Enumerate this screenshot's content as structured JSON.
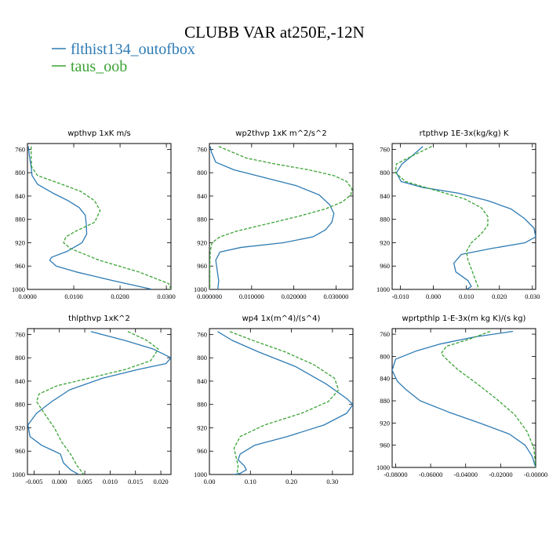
{
  "colors": {
    "series1": "#2e7bb4",
    "series2": "#3aa335"
  },
  "chart_data": {
    "title": "CLUBB VAR at250E,-12N",
    "legend": [
      {
        "label": "flthist134_outofbox",
        "color": "#2e7bb4",
        "style": "solid"
      },
      {
        "label": "taus_oob",
        "color": "#3aa335",
        "style": "dashed"
      }
    ],
    "panels": [
      {
        "type": "line",
        "title": "wpthvp  1xK m/s",
        "xlim": [
          0,
          0.031
        ],
        "ylim": [
          1000,
          750
        ],
        "xtick_values": [
          0,
          0.01,
          0.02,
          0.03
        ],
        "xtick_labels": [
          "0.0000",
          "0.0100",
          "0.0200",
          "0.0300"
        ],
        "ytick_values": [
          760,
          800,
          840,
          880,
          920,
          960,
          1000
        ],
        "ytick_labels": [
          "760",
          "800",
          "840",
          "880",
          "920",
          "960",
          "1000"
        ],
        "series": [
          {
            "name": "flthist134_outofbox",
            "x": [
              0.0002,
              0.0004,
              0.0008,
              0.001,
              0.0022,
              0.0055,
              0.0088,
              0.0112,
              0.0125,
              0.0127,
              0.0128,
              0.0118,
              0.0085,
              0.0052,
              0.0048,
              0.0062,
              0.0105,
              0.0185,
              0.027
            ],
            "y": [
              755,
              770,
              790,
              805,
              820,
              835,
              848,
              860,
              873,
              888,
              905,
              920,
              935,
              945,
              950,
              960,
              970,
              985,
              1000
            ]
          },
          {
            "name": "taus_oob",
            "x": [
              0.0008,
              0.0008,
              0.0009,
              0.0022,
              0.0068,
              0.0115,
              0.0145,
              0.0157,
              0.0145,
              0.0105,
              0.0083,
              0.0078,
              0.0093,
              0.0155,
              0.024,
              0.0305,
              0.031
            ],
            "y": [
              755,
              770,
              790,
              805,
              818,
              832,
              848,
              865,
              885,
              900,
              910,
              920,
              930,
              950,
              970,
              990,
              1000
            ]
          }
        ]
      },
      {
        "type": "line",
        "title": "wp2thvp  1xK m^2/s^2",
        "xlim": [
          0,
          0.034
        ],
        "ylim": [
          1000,
          750
        ],
        "xtick_values": [
          0,
          0.01,
          0.02,
          0.03
        ],
        "xtick_labels": [
          "0.000000",
          "0.010000",
          "0.020000",
          "0.030000"
        ],
        "ytick_values": [
          760,
          800,
          840,
          880,
          920,
          960,
          1000
        ],
        "ytick_labels": [
          "760",
          "800",
          "840",
          "880",
          "920",
          "960",
          "1000"
        ],
        "series": [
          {
            "name": "flthist134_outofbox",
            "x": [
              0.0002,
              0.0005,
              0.0015,
              0.0058,
              0.0128,
              0.0205,
              0.026,
              0.0285,
              0.0295,
              0.029,
              0.0275,
              0.0245,
              0.0175,
              0.0075,
              0.0025,
              0.0015,
              0.0018,
              0.0022,
              0.002
            ],
            "y": [
              755,
              765,
              782,
              795,
              808,
              822,
              838,
              855,
              870,
              885,
              898,
              910,
              920,
              928,
              936,
              950,
              965,
              985,
              1000
            ]
          },
          {
            "name": "taus_oob",
            "x": [
              0.0022,
              0.0045,
              0.0088,
              0.0155,
              0.0235,
              0.0295,
              0.0325,
              0.0338,
              0.0335,
              0.0315,
              0.0275,
              0.021,
              0.0135,
              0.0065,
              0.0025,
              0.0006,
              0.0002,
              0.0001,
              0.0001
            ],
            "y": [
              755,
              762,
              775,
              785,
              795,
              805,
              815,
              828,
              838,
              850,
              862,
              875,
              888,
              900,
              910,
              920,
              935,
              960,
              1000
            ]
          }
        ]
      },
      {
        "type": "line",
        "title": "rtpthvp  1E-3x(kg/kg) K",
        "xlim": [
          -0.0125,
          0.031
        ],
        "ylim": [
          1000,
          750
        ],
        "xtick_values": [
          -0.01,
          0,
          0.01,
          0.02,
          0.03
        ],
        "xtick_labels": [
          "-0.010",
          "0.000",
          "0.010",
          "0.020",
          "0.030"
        ],
        "ytick_values": [
          760,
          800,
          840,
          880,
          920,
          960,
          1000
        ],
        "ytick_labels": [
          "760",
          "800",
          "840",
          "880",
          "920",
          "960",
          "1000"
        ],
        "series": [
          {
            "name": "flthist134_outofbox",
            "x": [
              -0.0032,
              -0.0062,
              -0.0095,
              -0.0112,
              -0.0098,
              -0.0035,
              0.0075,
              0.0165,
              0.0235,
              0.0275,
              0.0305,
              0.031,
              0.0278,
              0.0175,
              0.0085,
              0.0062,
              0.0068,
              0.0105,
              0.0115,
              0.01
            ],
            "y": [
              755,
              770,
              785,
              800,
              815,
              825,
              835,
              848,
              862,
              878,
              895,
              910,
              920,
              930,
              940,
              955,
              970,
              985,
              995,
              1000
            ]
          },
          {
            "name": "taus_oob",
            "x": [
              -0.0005,
              -0.006,
              -0.0112,
              -0.0115,
              -0.0085,
              0.0005,
              0.0095,
              0.0145,
              0.0165,
              0.0165,
              0.0145,
              0.0115,
              0.01,
              0.0105,
              0.0115,
              0.0125,
              0.0135,
              0.0138
            ],
            "y": [
              755,
              770,
              785,
              800,
              815,
              830,
              845,
              860,
              875,
              890,
              905,
              920,
              935,
              950,
              965,
              980,
              995,
              1000
            ]
          }
        ]
      },
      {
        "type": "line",
        "title": "thlpthvp  1xK^2",
        "xlim": [
          -0.0063,
          0.022
        ],
        "ylim": [
          1000,
          750
        ],
        "xtick_values": [
          -0.005,
          0,
          0.005,
          0.01,
          0.015,
          0.02
        ],
        "xtick_labels": [
          "-0.005",
          "0.000",
          "0.005",
          "0.010",
          "0.015",
          "0.020"
        ],
        "ytick_values": [
          760,
          800,
          840,
          880,
          920,
          960,
          1000
        ],
        "ytick_labels": [
          "760",
          "800",
          "840",
          "880",
          "920",
          "960",
          "1000"
        ],
        "series": [
          {
            "name": "flthist134_outofbox",
            "x": [
              0.0062,
              0.0128,
              0.0185,
              0.022,
              0.021,
              0.0155,
              0.0085,
              0.002,
              -0.0015,
              -0.0045,
              -0.0062,
              -0.0058,
              -0.0035,
              -0.0015,
              0.0002,
              0.0008,
              0.0022,
              0.0038
            ],
            "y": [
              755,
              770,
              785,
              800,
              810,
              820,
              835,
              855,
              875,
              895,
              915,
              935,
              950,
              958,
              965,
              980,
              992,
              1000
            ]
          },
          {
            "name": "taus_oob",
            "x": [
              0.0135,
              0.0172,
              0.0195,
              0.018,
              0.013,
              0.0058,
              -0.0005,
              -0.004,
              -0.0045,
              -0.003,
              -0.001,
              0.0005,
              0.0022,
              0.0035,
              0.0048
            ],
            "y": [
              755,
              770,
              785,
              805,
              820,
              835,
              848,
              862,
              875,
              895,
              920,
              945,
              965,
              985,
              1000
            ]
          }
        ]
      },
      {
        "type": "line",
        "title": "wp4  1x(m^4)/(s^4)",
        "xlim": [
          0,
          0.35
        ],
        "ylim": [
          1000,
          750
        ],
        "xtick_values": [
          0,
          0.1,
          0.2,
          0.3
        ],
        "xtick_labels": [
          "0.00",
          "0.10",
          "0.20",
          "0.30"
        ],
        "ytick_values": [
          760,
          800,
          840,
          880,
          920,
          960,
          1000
        ],
        "ytick_labels": [
          "760",
          "800",
          "840",
          "880",
          "920",
          "960",
          "1000"
        ],
        "series": [
          {
            "name": "flthist134_outofbox",
            "x": [
              0.02,
              0.055,
              0.12,
              0.21,
              0.285,
              0.335,
              0.35,
              0.335,
              0.28,
              0.19,
              0.11,
              0.075,
              0.07,
              0.085,
              0.09,
              0.075,
              0.06
            ],
            "y": [
              755,
              770,
              790,
              815,
              845,
              870,
              880,
              895,
              915,
              935,
              950,
              965,
              975,
              985,
              992,
              998,
              1000
            ]
          },
          {
            "name": "taus_oob",
            "x": [
              0.05,
              0.105,
              0.185,
              0.255,
              0.305,
              0.315,
              0.29,
              0.225,
              0.135,
              0.075,
              0.06,
              0.065,
              0.07,
              0.068,
              0.07
            ],
            "y": [
              755,
              770,
              790,
              812,
              835,
              855,
              875,
              895,
              915,
              935,
              955,
              970,
              985,
              995,
              1000
            ]
          }
        ]
      },
      {
        "type": "line",
        "title": "wprtpthlp  1-E-3x(m kg K)/(s kg)",
        "xlim": [
          -0.082,
          0
        ],
        "ylim": [
          1000,
          750
        ],
        "xtick_values": [
          -0.08,
          -0.06,
          -0.04,
          -0.02,
          0
        ],
        "xtick_labels": [
          "-0.08000",
          "-0.06000",
          "-0.04000",
          "-0.02000",
          "-0.00000"
        ],
        "ytick_values": [
          760,
          800,
          840,
          880,
          920,
          960,
          1000
        ],
        "ytick_labels": [
          "760",
          "800",
          "840",
          "880",
          "920",
          "960",
          "1000"
        ],
        "series": [
          {
            "name": "flthist134_outofbox",
            "x": [
              -0.013,
              -0.035,
              -0.055,
              -0.068,
              -0.08,
              -0.082,
              -0.079,
              -0.074,
              -0.066,
              -0.05,
              -0.032,
              -0.015,
              -0.006,
              -0.002,
              0
            ],
            "y": [
              755,
              765,
              778,
              790,
              805,
              825,
              845,
              860,
              880,
              900,
              920,
              940,
              960,
              980,
              1000
            ]
          },
          {
            "name": "taus_oob",
            "x": [
              -0.026,
              -0.037,
              -0.051,
              -0.054,
              -0.05,
              -0.044,
              -0.034,
              -0.023,
              -0.012,
              -0.005,
              -0.001,
              0
            ],
            "y": [
              755,
              768,
              782,
              795,
              808,
              825,
              848,
              875,
              905,
              935,
              965,
              1000
            ]
          }
        ]
      }
    ]
  }
}
